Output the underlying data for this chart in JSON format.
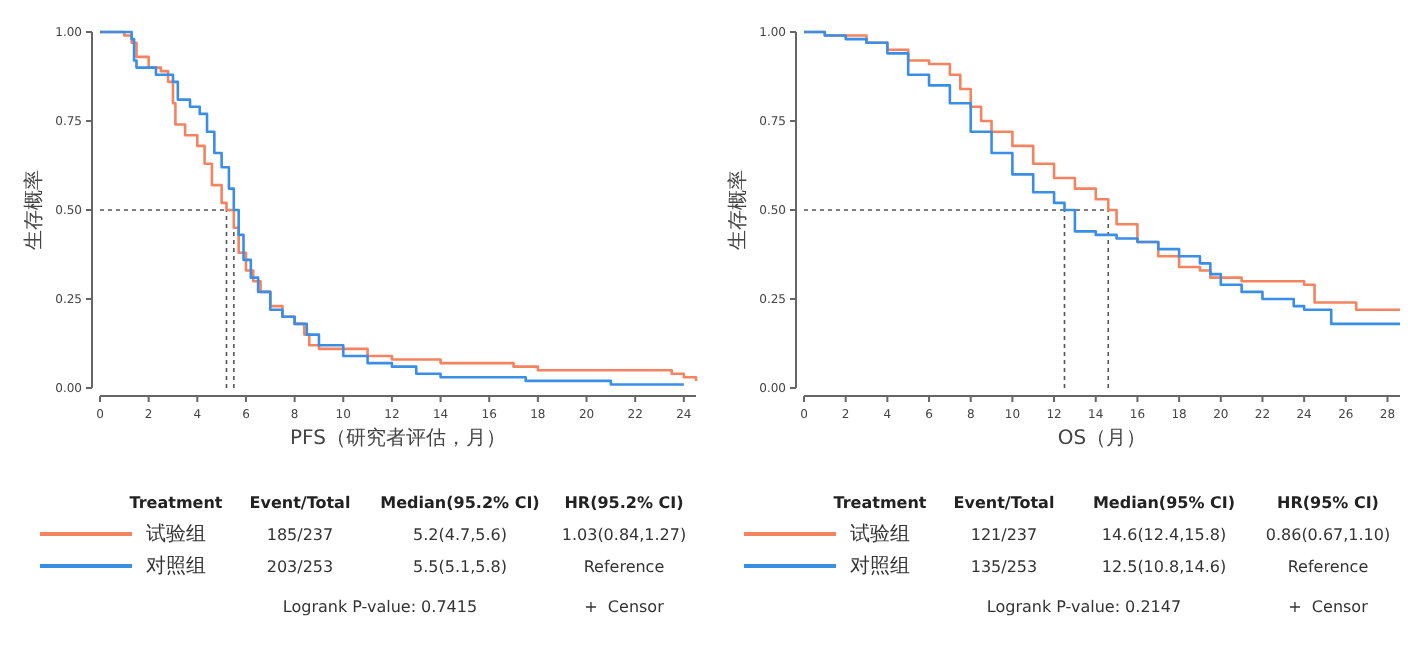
{
  "chart_data": [
    {
      "type": "step",
      "xlabel": "PFS（研究者评估，月）",
      "ylabel": "生存概率",
      "xlim": [
        0,
        24.5
      ],
      "ylim": [
        0,
        1
      ],
      "xticks": [
        0,
        2,
        4,
        6,
        8,
        10,
        12,
        14,
        16,
        18,
        20,
        22,
        24
      ],
      "yticks": [
        {
          "value": 0,
          "label": "0.00"
        },
        {
          "value": 0.25,
          "label": "0.25"
        },
        {
          "value": 0.5,
          "label": "0.50"
        },
        {
          "value": 0.75,
          "label": "0.75"
        },
        {
          "value": 1,
          "label": "1.00"
        }
      ],
      "legend": "bottom",
      "series": [
        {
          "name": "试验组",
          "color": "#f4845f",
          "x": [
            0,
            1.0,
            1.3,
            1.5,
            2,
            2.5,
            2.8,
            3.0,
            3.1,
            3.5,
            4.0,
            4.3,
            4.6,
            5.0,
            5.2,
            5.5,
            5.7,
            6.0,
            6.3,
            6.6,
            7.0,
            7.5,
            8.0,
            8.4,
            8.6,
            9,
            10,
            11,
            12,
            14,
            17,
            18,
            23.5,
            24,
            24.5
          ],
          "values": [
            1.0,
            0.99,
            0.97,
            0.93,
            0.9,
            0.89,
            0.86,
            0.8,
            0.74,
            0.71,
            0.68,
            0.63,
            0.57,
            0.52,
            0.5,
            0.45,
            0.38,
            0.33,
            0.3,
            0.27,
            0.23,
            0.2,
            0.18,
            0.15,
            0.12,
            0.11,
            0.11,
            0.09,
            0.08,
            0.07,
            0.06,
            0.05,
            0.04,
            0.03,
            0.02
          ]
        },
        {
          "name": "对照组",
          "color": "#3a8ee6",
          "x": [
            0,
            1.3,
            1.4,
            1.5,
            2.3,
            3,
            3.2,
            3.7,
            4.1,
            4.4,
            4.7,
            5.0,
            5.3,
            5.5,
            5.7,
            5.9,
            6.2,
            6.5,
            7.0,
            7.5,
            8,
            8.5,
            9,
            10,
            11,
            12,
            13,
            14,
            17.5,
            21,
            24
          ],
          "values": [
            1.0,
            0.98,
            0.92,
            0.9,
            0.88,
            0.86,
            0.81,
            0.79,
            0.77,
            0.72,
            0.66,
            0.62,
            0.56,
            0.5,
            0.43,
            0.36,
            0.31,
            0.27,
            0.22,
            0.2,
            0.18,
            0.15,
            0.12,
            0.09,
            0.07,
            0.06,
            0.04,
            0.03,
            0.02,
            0.01,
            0.01
          ]
        }
      ],
      "ref_lines": [
        {
          "axis": "y",
          "value": 0.5,
          "color": "#555555",
          "line_style": "dotted"
        },
        {
          "axis": "x",
          "value": 5.2,
          "color": "#555555",
          "line_style": "dotted"
        },
        {
          "axis": "x",
          "value": 5.5,
          "color": "#555555",
          "line_style": "dotted"
        }
      ],
      "annotations": [
        "Treatment",
        "Event/Total",
        "Median(95.2% CI)",
        "HR(95.2% CI)",
        "185/237",
        "5.2(4.7,5.6)",
        "1.03(0.84,1.27)",
        "203/253",
        "5.5(5.1,5.8)",
        "Reference",
        "Logrank P-value: 0.7415",
        "+  Censor"
      ]
    },
    {
      "type": "step",
      "xlabel": "OS（月）",
      "ylabel": "生存概率",
      "xlim": [
        0,
        28.6
      ],
      "ylim": [
        0,
        1
      ],
      "xticks": [
        0,
        2,
        4,
        6,
        8,
        10,
        12,
        14,
        16,
        18,
        20,
        22,
        24,
        26,
        28
      ],
      "yticks": [
        {
          "value": 0,
          "label": "0.00"
        },
        {
          "value": 0.25,
          "label": "0.25"
        },
        {
          "value": 0.5,
          "label": "0.50"
        },
        {
          "value": 0.75,
          "label": "0.75"
        },
        {
          "value": 1,
          "label": "1.00"
        }
      ],
      "legend": "bottom",
      "series": [
        {
          "name": "试验组",
          "color": "#f4845f",
          "x": [
            0,
            1,
            2,
            3,
            4,
            5,
            6,
            7,
            7.5,
            8,
            8.5,
            9,
            10,
            11,
            12,
            13,
            14,
            14.6,
            15,
            16,
            17,
            18,
            19,
            19.5,
            20,
            21,
            24,
            24.5,
            26.5,
            28.6
          ],
          "values": [
            1.0,
            0.99,
            0.99,
            0.97,
            0.95,
            0.92,
            0.91,
            0.88,
            0.84,
            0.79,
            0.75,
            0.72,
            0.68,
            0.63,
            0.59,
            0.56,
            0.53,
            0.5,
            0.46,
            0.41,
            0.37,
            0.34,
            0.33,
            0.31,
            0.31,
            0.3,
            0.29,
            0.24,
            0.22,
            0.22
          ]
        },
        {
          "name": "对照组",
          "color": "#3a8ee6",
          "x": [
            0,
            1,
            2,
            3,
            4,
            5,
            6,
            7,
            8,
            9,
            10,
            11,
            12,
            12.5,
            13,
            14,
            15,
            16,
            17,
            18,
            19,
            19.5,
            20,
            21,
            22,
            23.5,
            24,
            25.3,
            28.6
          ],
          "values": [
            1.0,
            0.99,
            0.98,
            0.97,
            0.94,
            0.88,
            0.85,
            0.8,
            0.72,
            0.66,
            0.6,
            0.55,
            0.52,
            0.5,
            0.44,
            0.43,
            0.42,
            0.41,
            0.39,
            0.37,
            0.35,
            0.32,
            0.29,
            0.27,
            0.25,
            0.23,
            0.22,
            0.18,
            0.18
          ]
        }
      ],
      "ref_lines": [
        {
          "axis": "y",
          "value": 0.5,
          "color": "#555555",
          "line_style": "dotted"
        },
        {
          "axis": "x",
          "value": 12.5,
          "color": "#555555",
          "line_style": "dotted"
        },
        {
          "axis": "x",
          "value": 14.6,
          "color": "#555555",
          "line_style": "dotted"
        }
      ],
      "annotations": [
        "Treatment",
        "Event/Total",
        "Median(95% CI)",
        "HR(95% CI)",
        "121/237",
        "14.6(12.4,15.8)",
        "0.86(0.67,1.10)",
        "135/253",
        "12.5(10.8,14.6)",
        "Reference",
        "Logrank P-value: 0.2147",
        "+  Censor"
      ]
    }
  ]
}
